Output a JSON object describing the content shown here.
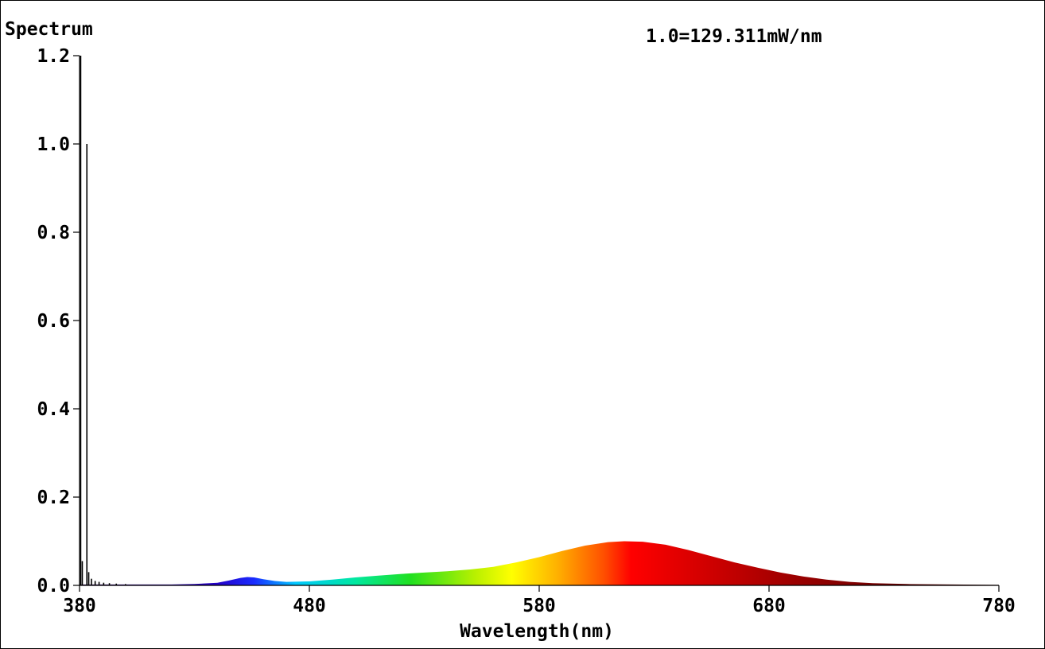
{
  "chart_data": {
    "type": "area",
    "title": "Spectrum",
    "annotation": "1.0=129.311mW/nm",
    "xlabel": "Wavelength(nm)",
    "ylabel": "",
    "xlim": [
      380,
      780
    ],
    "ylim": [
      0,
      1.2
    ],
    "x_ticks": [
      "380",
      "480",
      "580",
      "680",
      "780"
    ],
    "y_ticks": [
      "0.0",
      "0.2",
      "0.4",
      "0.6",
      "0.8",
      "1.0",
      "1.2"
    ],
    "grid": false,
    "fill": "visible spectrum colour gradient under curve",
    "spikes": [
      {
        "x": 380.5,
        "y": 1.2
      },
      {
        "x": 381.2,
        "y": 0.055
      },
      {
        "x": 383.2,
        "y": 1.0
      },
      {
        "x": 384.0,
        "y": 0.03
      },
      {
        "x": 385.2,
        "y": 0.015
      },
      {
        "x": 386.8,
        "y": 0.01
      },
      {
        "x": 388.5,
        "y": 0.008
      },
      {
        "x": 390.5,
        "y": 0.006
      },
      {
        "x": 393.0,
        "y": 0.005
      },
      {
        "x": 396.0,
        "y": 0.004
      },
      {
        "x": 400.0,
        "y": 0.003
      }
    ],
    "series": [
      {
        "values": [
          [
            380,
            0.002
          ],
          [
            400,
            0.002
          ],
          [
            420,
            0.002
          ],
          [
            430,
            0.003
          ],
          [
            440,
            0.006
          ],
          [
            445,
            0.011
          ],
          [
            450,
            0.017
          ],
          [
            453,
            0.019
          ],
          [
            456,
            0.018
          ],
          [
            460,
            0.014
          ],
          [
            465,
            0.01
          ],
          [
            470,
            0.008
          ],
          [
            480,
            0.009
          ],
          [
            490,
            0.013
          ],
          [
            500,
            0.018
          ],
          [
            510,
            0.022
          ],
          [
            520,
            0.026
          ],
          [
            530,
            0.029
          ],
          [
            540,
            0.032
          ],
          [
            550,
            0.036
          ],
          [
            560,
            0.042
          ],
          [
            570,
            0.052
          ],
          [
            580,
            0.064
          ],
          [
            590,
            0.078
          ],
          [
            600,
            0.09
          ],
          [
            610,
            0.098
          ],
          [
            617,
            0.1
          ],
          [
            625,
            0.099
          ],
          [
            635,
            0.092
          ],
          [
            645,
            0.08
          ],
          [
            655,
            0.066
          ],
          [
            665,
            0.052
          ],
          [
            675,
            0.04
          ],
          [
            685,
            0.029
          ],
          [
            695,
            0.02
          ],
          [
            705,
            0.013
          ],
          [
            715,
            0.008
          ],
          [
            725,
            0.005
          ],
          [
            740,
            0.003
          ],
          [
            760,
            0.002
          ],
          [
            780,
            0.001
          ]
        ]
      }
    ]
  }
}
